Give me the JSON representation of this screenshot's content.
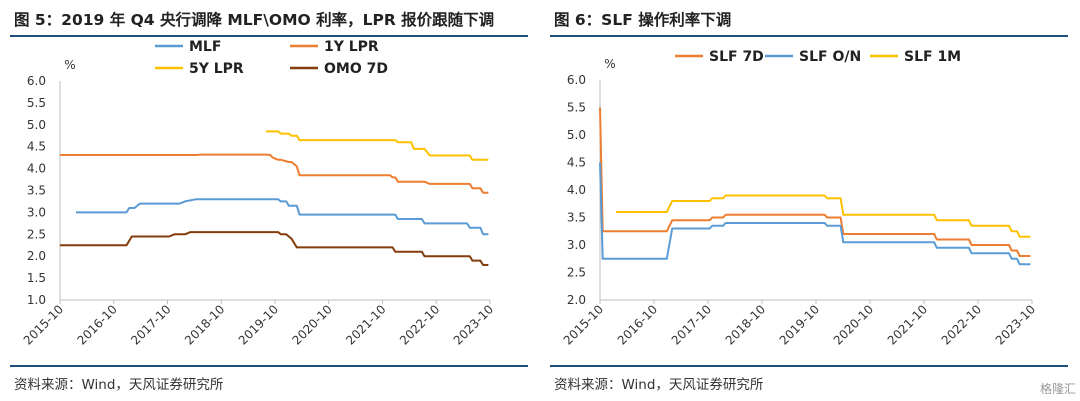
{
  "charts": [
    {
      "title": "图 5：2019 年 Q4 央行调降 MLF\\OMO 利率，LPR 报价跟随下调",
      "source": "资料来源：Wind，天风证券研究所"
    },
    {
      "title": "图 6：SLF 操作利率下调",
      "source": "资料来源：Wind，天风证券研究所"
    }
  ],
  "watermark": "格隆汇",
  "chart_data": [
    {
      "type": "line",
      "title": "",
      "xlabel": "",
      "ylabel": "%",
      "ylim": [
        1.0,
        6.0
      ],
      "yticks": [
        "1.0",
        "1.5",
        "2.0",
        "2.5",
        "3.0",
        "3.5",
        "4.0",
        "4.5",
        "5.0",
        "5.5",
        "6.0"
      ],
      "xlim": [
        2015.75,
        2023.83
      ],
      "xticks": [
        "2015-10",
        "2016-10",
        "2017-10",
        "2018-10",
        "2019-10",
        "2020-10",
        "2021-10",
        "2022-10",
        "2023-10"
      ],
      "legend_position": "top",
      "series": [
        {
          "name": "MLF",
          "color": "#5b9bd5",
          "x": [
            2016.05,
            2017.0,
            2017.05,
            2017.15,
            2017.25,
            2018.0,
            2018.1,
            2018.3,
            2019.85,
            2019.9,
            2020.0,
            2020.05,
            2020.2,
            2020.25,
            2022.05,
            2022.1,
            2022.55,
            2022.6,
            2023.4,
            2023.45,
            2023.65,
            2023.7,
            2023.8
          ],
          "y": [
            3.0,
            3.0,
            3.1,
            3.1,
            3.2,
            3.2,
            3.25,
            3.3,
            3.3,
            3.25,
            3.25,
            3.15,
            3.15,
            2.95,
            2.95,
            2.85,
            2.85,
            2.75,
            2.75,
            2.65,
            2.65,
            2.5,
            2.5
          ]
        },
        {
          "name": "1Y LPR",
          "color": "#ed7d31",
          "x": [
            2015.75,
            2018.3,
            2018.4,
            2019.62,
            2019.7,
            2019.75,
            2019.85,
            2019.9,
            2020.05,
            2020.1,
            2020.2,
            2020.25,
            2021.95,
            2022.0,
            2022.05,
            2022.1,
            2022.6,
            2022.7,
            2023.45,
            2023.5,
            2023.65,
            2023.7,
            2023.8
          ],
          "y": [
            4.31,
            4.31,
            4.32,
            4.32,
            4.31,
            4.25,
            4.2,
            4.2,
            4.15,
            4.15,
            4.05,
            3.85,
            3.85,
            3.8,
            3.8,
            3.7,
            3.7,
            3.65,
            3.65,
            3.55,
            3.55,
            3.45,
            3.45
          ]
        },
        {
          "name": "5Y LPR",
          "color": "#ffc000",
          "x": [
            2019.62,
            2019.85,
            2019.9,
            2020.05,
            2020.1,
            2020.2,
            2020.25,
            2022.05,
            2022.1,
            2022.35,
            2022.4,
            2022.6,
            2022.7,
            2023.45,
            2023.5,
            2023.8
          ],
          "y": [
            4.85,
            4.85,
            4.8,
            4.8,
            4.75,
            4.75,
            4.65,
            4.65,
            4.6,
            4.6,
            4.45,
            4.45,
            4.3,
            4.3,
            4.2,
            4.2
          ]
        },
        {
          "name": "OMO 7D",
          "color": "#843c0c",
          "x": [
            2015.75,
            2017.0,
            2017.1,
            2017.8,
            2017.9,
            2018.1,
            2018.2,
            2019.85,
            2019.9,
            2020.0,
            2020.05,
            2020.1,
            2020.2,
            2022.0,
            2022.05,
            2022.1,
            2022.55,
            2022.6,
            2023.45,
            2023.5,
            2023.65,
            2023.7,
            2023.8
          ],
          "y": [
            2.25,
            2.25,
            2.45,
            2.45,
            2.5,
            2.5,
            2.55,
            2.55,
            2.5,
            2.5,
            2.45,
            2.4,
            2.2,
            2.2,
            2.1,
            2.1,
            2.1,
            2.0,
            2.0,
            1.9,
            1.9,
            1.8,
            1.8
          ]
        }
      ]
    },
    {
      "type": "line",
      "title": "",
      "xlabel": "",
      "ylabel": "%",
      "ylim": [
        2.0,
        6.0
      ],
      "yticks": [
        "2.0",
        "2.5",
        "3.0",
        "3.5",
        "4.0",
        "4.5",
        "5.0",
        "5.5",
        "6.0"
      ],
      "xlim": [
        2015.75,
        2023.83
      ],
      "xticks": [
        "2015-10",
        "2016-10",
        "2017-10",
        "2018-10",
        "2019-10",
        "2020-10",
        "2021-10",
        "2022-10",
        "2023-10"
      ],
      "legend_position": "top",
      "series": [
        {
          "name": "SLF 7D",
          "color": "#ed7d31",
          "x": [
            2015.75,
            2015.8,
            2017.0,
            2017.1,
            2017.8,
            2017.85,
            2018.05,
            2018.1,
            2019.95,
            2020.0,
            2020.05,
            2020.1,
            2020.25,
            2020.3,
            2022.0,
            2022.05,
            2022.65,
            2022.7,
            2023.4,
            2023.45,
            2023.55,
            2023.6,
            2023.8
          ],
          "y": [
            5.5,
            3.25,
            3.25,
            3.45,
            3.45,
            3.5,
            3.5,
            3.55,
            3.55,
            3.5,
            3.5,
            3.5,
            3.5,
            3.2,
            3.2,
            3.1,
            3.1,
            3.0,
            3.0,
            2.9,
            2.9,
            2.8,
            2.8
          ]
        },
        {
          "name": "SLF O/N",
          "color": "#5b9bd5",
          "x": [
            2015.75,
            2015.8,
            2016.95,
            2017.0,
            2017.1,
            2017.8,
            2017.85,
            2018.05,
            2018.1,
            2019.95,
            2020.0,
            2020.25,
            2020.3,
            2022.0,
            2022.05,
            2022.65,
            2022.7,
            2023.4,
            2023.45,
            2023.55,
            2023.6,
            2023.8
          ],
          "y": [
            4.5,
            2.75,
            2.75,
            2.75,
            3.3,
            3.3,
            3.35,
            3.35,
            3.4,
            3.4,
            3.35,
            3.35,
            3.05,
            3.05,
            2.95,
            2.95,
            2.85,
            2.85,
            2.75,
            2.75,
            2.65,
            2.65
          ]
        },
        {
          "name": "SLF 1M",
          "color": "#ffc000",
          "x": [
            2016.05,
            2017.0,
            2017.1,
            2017.8,
            2017.85,
            2018.05,
            2018.1,
            2019.95,
            2020.0,
            2020.25,
            2020.3,
            2022.0,
            2022.05,
            2022.65,
            2022.7,
            2023.4,
            2023.45,
            2023.55,
            2023.6,
            2023.8
          ],
          "y": [
            3.6,
            3.6,
            3.8,
            3.8,
            3.85,
            3.85,
            3.9,
            3.9,
            3.85,
            3.85,
            3.55,
            3.55,
            3.45,
            3.45,
            3.35,
            3.35,
            3.25,
            3.25,
            3.15,
            3.15
          ]
        }
      ]
    }
  ]
}
